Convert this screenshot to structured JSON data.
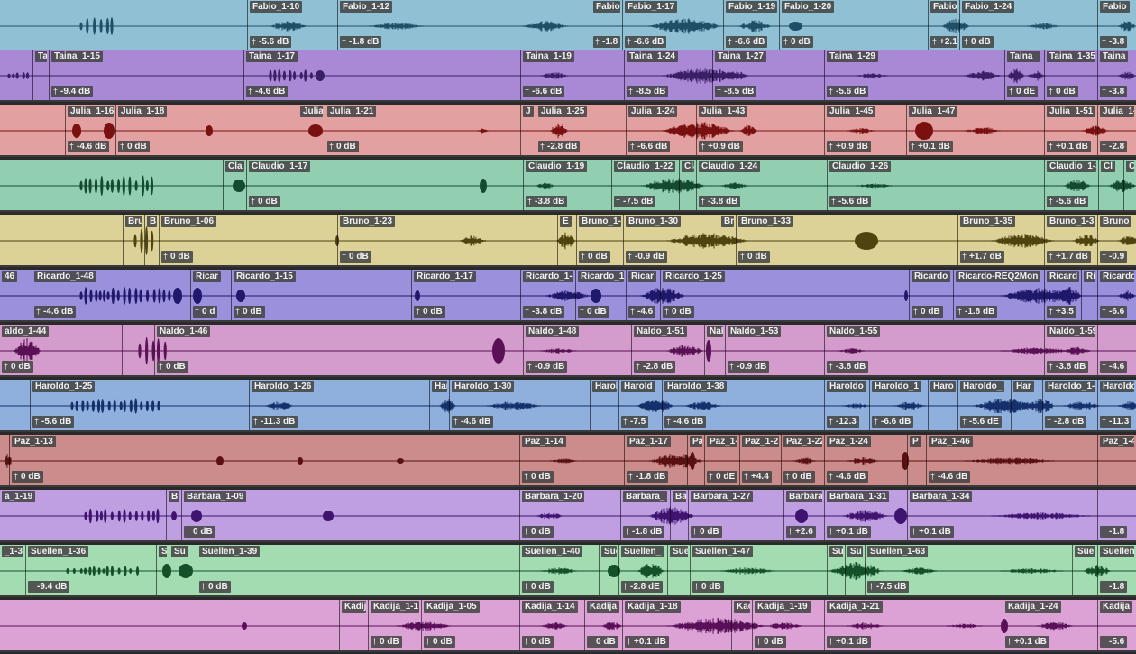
{
  "tracks": [
    {
      "name": "Fabio",
      "color": "#8fc0d4",
      "wave_color": "#1f4f66",
      "clips": [
        {
          "name": "",
          "gain": ""
        },
        {
          "name": "Fabio_1-10",
          "gain": "-5.6 dB"
        },
        {
          "name": "Fabio_1-12",
          "gain": "-1.8 dB"
        },
        {
          "name": "Fabio",
          "gain": "-1.8"
        },
        {
          "name": "Fabio_1-17",
          "gain": "-6.6 dB"
        },
        {
          "name": "Fabio_1-19",
          "gain": "-6.6 dB"
        },
        {
          "name": "Fabio_1-20",
          "gain": "0 dB"
        },
        {
          "name": "Fabio",
          "gain": "+2.1"
        },
        {
          "name": "Fabio_1-24",
          "gain": "0 dB"
        },
        {
          "name": "Fabio",
          "gain": "-3.8"
        }
      ]
    },
    {
      "name": "Taina",
      "color": "#a988d6",
      "wave_color": "#3b1f66",
      "clips": [
        {
          "name": "",
          "gain": ""
        },
        {
          "name": "Ta",
          "gain": ""
        },
        {
          "name": "Taina_1-15",
          "gain": "-9.4 dB"
        },
        {
          "name": "Taina_1-17",
          "gain": "-4.6 dB"
        },
        {
          "name": "Taina_1-19",
          "gain": "-6.6 dB"
        },
        {
          "name": "Taina_1-24",
          "gain": "-8.5 dB"
        },
        {
          "name": "Taina_1-27",
          "gain": "-8.5 dB"
        },
        {
          "name": "Taina_1-29",
          "gain": "-5.6 dB"
        },
        {
          "name": "Taina_",
          "gain": "0 dE"
        },
        {
          "name": "Taina_1-35",
          "gain": "0 dB"
        },
        {
          "name": "Taina",
          "gain": "-3.8"
        }
      ]
    },
    {
      "name": "Julia",
      "color": "#e2a0a0",
      "wave_color": "#7a1010",
      "clips": [
        {
          "name": "",
          "gain": ""
        },
        {
          "name": "Julia_1-16",
          "gain": "-4.6 dB"
        },
        {
          "name": "Julia_1-18",
          "gain": "0 dB"
        },
        {
          "name": "Julia",
          "gain": ""
        },
        {
          "name": "Julia_1-21",
          "gain": "0 dB"
        },
        {
          "name": "J",
          "gain": ""
        },
        {
          "name": "Julia_1-25",
          "gain": "-2.8 dB"
        },
        {
          "name": "Julia_1-24",
          "gain": "-6.6 dB"
        },
        {
          "name": "Julia_1-43",
          "gain": "+0.9 dB"
        },
        {
          "name": "Julia_1-45",
          "gain": "+0.9 dB"
        },
        {
          "name": "Julia_1-47",
          "gain": "+0.1 dB"
        },
        {
          "name": "Julia_1-51",
          "gain": "+0.1 dB"
        },
        {
          "name": "Julia_1-",
          "gain": "-2.8"
        }
      ]
    },
    {
      "name": "Claudio",
      "color": "#92cfb0",
      "wave_color": "#144a30",
      "clips": [
        {
          "name": "",
          "gain": ""
        },
        {
          "name": "Cla",
          "gain": ""
        },
        {
          "name": "Claudio_1-17",
          "gain": "0 dB"
        },
        {
          "name": "Claudio_1-19",
          "gain": "-3.8 dB"
        },
        {
          "name": "Claudio_1-22",
          "gain": "-7.5 dB"
        },
        {
          "name": "Cla",
          "gain": ""
        },
        {
          "name": "Claudio_1-24",
          "gain": "-3.8 dB"
        },
        {
          "name": "Claudio_1-26",
          "gain": "-5.6 dB"
        },
        {
          "name": "Claudio_1-3",
          "gain": "-5.6 dB"
        },
        {
          "name": "Cl",
          "gain": ""
        },
        {
          "name": "Cl",
          "gain": ""
        }
      ]
    },
    {
      "name": "Bruno",
      "color": "#dcd196",
      "wave_color": "#4f4410",
      "clips": [
        {
          "name": "",
          "gain": ""
        },
        {
          "name": "Bru",
          "gain": ""
        },
        {
          "name": "B",
          "gain": ""
        },
        {
          "name": "Bruno_1-06",
          "gain": "0 dB"
        },
        {
          "name": "Bruno_1-23",
          "gain": "0 dB"
        },
        {
          "name": "E",
          "gain": ""
        },
        {
          "name": "Bruno_1-",
          "gain": "0 dB"
        },
        {
          "name": "Bruno_1-30",
          "gain": "-0.9 dB"
        },
        {
          "name": "Br",
          "gain": ""
        },
        {
          "name": "Bruno_1-33",
          "gain": "0 dB"
        },
        {
          "name": "Bruno_1-35",
          "gain": "+1.7 dB"
        },
        {
          "name": "Bruno_1-3",
          "gain": "+1.7 dB"
        },
        {
          "name": "Bruno",
          "gain": "-0.9"
        }
      ]
    },
    {
      "name": "Ricardo",
      "color": "#9a90dc",
      "wave_color": "#20186a",
      "clips": [
        {
          "name": "46",
          "gain": ""
        },
        {
          "name": "Ricardo_1-48",
          "gain": "-4.6 dB"
        },
        {
          "name": "Ricar",
          "gain": "0 d"
        },
        {
          "name": "Ricardo_1-15",
          "gain": "0 dB"
        },
        {
          "name": "Ricardo_1-17",
          "gain": "0 dB"
        },
        {
          "name": "Ricardo_1-",
          "gain": "-3.8 dB"
        },
        {
          "name": "Ricardo_1",
          "gain": "0 dB"
        },
        {
          "name": "Ricar",
          "gain": "-4.6"
        },
        {
          "name": "Ricardo_1-25",
          "gain": "0 dB"
        },
        {
          "name": "Ricardo",
          "gain": "0 dB"
        },
        {
          "name": "Ricardo-REQ2Mon",
          "gain": "-1.8 dB"
        },
        {
          "name": "Ricard",
          "gain": "+3.5"
        },
        {
          "name": "Ri",
          "gain": ""
        },
        {
          "name": "Ricardo",
          "gain": "-6.6"
        }
      ]
    },
    {
      "name": "Naldo",
      "color": "#d49ccc",
      "wave_color": "#5a1055",
      "clips": [
        {
          "name": "aldo_1-44",
          "gain": "0 dB"
        },
        {
          "name": "",
          "gain": ""
        },
        {
          "name": "Naldo_1-46",
          "gain": "0 dB"
        },
        {
          "name": "Naldo_1-48",
          "gain": "-0.9 dB"
        },
        {
          "name": "Naldo_1-51",
          "gain": "-2.8 dB"
        },
        {
          "name": "Nal",
          "gain": ""
        },
        {
          "name": "Naldo_1-53",
          "gain": "-0.9 dB"
        },
        {
          "name": "Naldo_1-55",
          "gain": "-3.8 dB"
        },
        {
          "name": "Naldo_1-59",
          "gain": "-3.8 dB"
        },
        {
          "name": "",
          "gain": "-4.6"
        }
      ]
    },
    {
      "name": "Haroldo",
      "color": "#8fb0dc",
      "wave_color": "#15306a",
      "clips": [
        {
          "name": "",
          "gain": ""
        },
        {
          "name": "Haroldo_1-25",
          "gain": "-5.6 dB"
        },
        {
          "name": "Haroldo_1-26",
          "gain": "-11.3 dB"
        },
        {
          "name": "Har",
          "gain": ""
        },
        {
          "name": "Haroldo_1-30",
          "gain": "-4.6 dB"
        },
        {
          "name": "Harol",
          "gain": ""
        },
        {
          "name": "Harold",
          "gain": "-7.5"
        },
        {
          "name": "Haroldo_1-38",
          "gain": "-4.6 dB"
        },
        {
          "name": "Haroldo",
          "gain": "-12.3"
        },
        {
          "name": "Haroldo_1",
          "gain": "-6.6 dB"
        },
        {
          "name": "Haro",
          "gain": ""
        },
        {
          "name": "Haroldo_",
          "gain": "-5.6 dE"
        },
        {
          "name": "Har",
          "gain": ""
        },
        {
          "name": "Haroldo_1-",
          "gain": "-2.8 dB"
        },
        {
          "name": "Haroldo",
          "gain": "-11.3"
        }
      ]
    },
    {
      "name": "Paz",
      "color": "#cc8c8c",
      "wave_color": "#5a1010",
      "clips": [
        {
          "name": "",
          "gain": ""
        },
        {
          "name": "Paz_1-13",
          "gain": "0 dB"
        },
        {
          "name": "Paz_1-14",
          "gain": "0 dB"
        },
        {
          "name": "Paz_1-17",
          "gain": "-1.8 dB"
        },
        {
          "name": "Pa",
          "gain": ""
        },
        {
          "name": "Paz_1-",
          "gain": "0 dE"
        },
        {
          "name": "Paz_1-2",
          "gain": "+4.4"
        },
        {
          "name": "Paz_1-22",
          "gain": "0 dB"
        },
        {
          "name": "Paz_1-24",
          "gain": "-4.6 dB"
        },
        {
          "name": "P",
          "gain": ""
        },
        {
          "name": "Paz_1-46",
          "gain": "-4.6 dB"
        },
        {
          "name": "Paz_1-4",
          "gain": ""
        }
      ]
    },
    {
      "name": "Barbara",
      "color": "#c09ee2",
      "wave_color": "#3e1470",
      "clips": [
        {
          "name": "a_1-19",
          "gain": ""
        },
        {
          "name": "B",
          "gain": ""
        },
        {
          "name": "Barbara_1-09",
          "gain": "0 dB"
        },
        {
          "name": "Barbara_1-20",
          "gain": "0 dB"
        },
        {
          "name": "Barbara_",
          "gain": "-1.8 dB"
        },
        {
          "name": "Ba",
          "gain": ""
        },
        {
          "name": "Barbara_1-27",
          "gain": "0 dB"
        },
        {
          "name": "Barbara",
          "gain": "+2.6"
        },
        {
          "name": "Barbara_1-31",
          "gain": "+0.1 dB"
        },
        {
          "name": "Barbara_1-34",
          "gain": "+0.1 dB"
        },
        {
          "name": "",
          "gain": "-1.8"
        }
      ]
    },
    {
      "name": "Suellen",
      "color": "#a2dcb0",
      "wave_color": "#145028",
      "clips": [
        {
          "name": "_1-32",
          "gain": ""
        },
        {
          "name": "Suellen_1-36",
          "gain": "-9.4 dB"
        },
        {
          "name": "S",
          "gain": ""
        },
        {
          "name": "Su",
          "gain": ""
        },
        {
          "name": "Suellen_1-39",
          "gain": "0 dB"
        },
        {
          "name": "Suellen_1-40",
          "gain": "0 dB"
        },
        {
          "name": "Sue",
          "gain": ""
        },
        {
          "name": "Suellen_",
          "gain": "-2.8 dE"
        },
        {
          "name": "Sue",
          "gain": ""
        },
        {
          "name": "Suellen_1-47",
          "gain": "0 dB"
        },
        {
          "name": "Su",
          "gain": ""
        },
        {
          "name": "Su",
          "gain": ""
        },
        {
          "name": "Suellen_1-63",
          "gain": "-7.5 dB"
        },
        {
          "name": "Suel",
          "gain": ""
        },
        {
          "name": "Suellen",
          "gain": "-1.8"
        }
      ]
    },
    {
      "name": "Kadija",
      "color": "#dca2d6",
      "wave_color": "#5a1058",
      "clips": [
        {
          "name": "",
          "gain": ""
        },
        {
          "name": "Kadij",
          "gain": ""
        },
        {
          "name": "Kadija_1-1",
          "gain": "0 dB"
        },
        {
          "name": "Kadija_1-05",
          "gain": "0 dB"
        },
        {
          "name": "Kadija_1-14",
          "gain": "0 dB"
        },
        {
          "name": "Kadija",
          "gain": "0 dB"
        },
        {
          "name": "Kadija_1-18",
          "gain": "+0.1 dB"
        },
        {
          "name": "Kac",
          "gain": ""
        },
        {
          "name": "Kadija_1-19",
          "gain": "0 dB"
        },
        {
          "name": "Kadija_1-21",
          "gain": "+0.1 dB"
        },
        {
          "name": "Kadija_1-24",
          "gain": "+0.1 dB"
        },
        {
          "name": "Kadija",
          "gain": "-5.6"
        }
      ]
    }
  ]
}
